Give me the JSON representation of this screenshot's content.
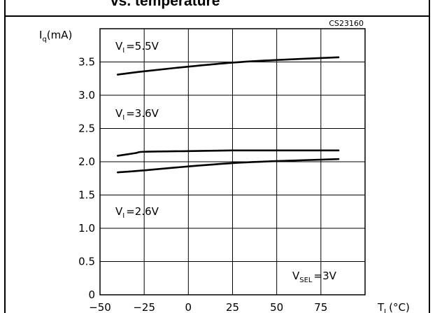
{
  "chart_data": {
    "type": "line",
    "title": "vs. temperature",
    "code": "CS23160",
    "ylabel": {
      "main": "I",
      "sub": "q",
      "unit": "(mA)"
    },
    "xlabel": {
      "main": "T",
      "sub": "J",
      "unit": "(°C)"
    },
    "xlim": [
      -50,
      100
    ],
    "ylim": [
      0,
      4.0
    ],
    "grid": true,
    "x_ticks": [
      -50,
      -25,
      0,
      25,
      50,
      75
    ],
    "x_tick_labels": [
      "−50",
      "−25",
      "0",
      "25",
      "50",
      "75"
    ],
    "y_ticks": [
      0,
      0.5,
      1.0,
      1.5,
      2.0,
      2.5,
      3.0,
      3.5
    ],
    "y_tick_labels": [
      "0",
      "0.5",
      "1.0",
      "1.5",
      "2.0",
      "2.5",
      "3.0",
      "3.5"
    ],
    "series": [
      {
        "name": "VI=5.5V",
        "x": [
          -40,
          -25,
          0,
          25,
          50,
          85
        ],
        "y": [
          3.31,
          3.36,
          3.43,
          3.49,
          3.53,
          3.57
        ]
      },
      {
        "name": "VI=3.6V",
        "x": [
          -40,
          -30,
          -25,
          0,
          25,
          50,
          85
        ],
        "y": [
          2.09,
          2.13,
          2.15,
          2.16,
          2.17,
          2.17,
          2.17
        ]
      },
      {
        "name": "VI=2.6V",
        "x": [
          -40,
          -25,
          0,
          25,
          50,
          85
        ],
        "y": [
          1.84,
          1.87,
          1.93,
          1.98,
          2.01,
          2.04
        ]
      }
    ],
    "annotations": [
      {
        "main": "V",
        "sub": "I",
        "text": "=5.5V"
      },
      {
        "main": "V",
        "sub": "I",
        "text": "=3.6V"
      },
      {
        "main": "V",
        "sub": "I",
        "text": "=2.6V"
      },
      {
        "main": "V",
        "sub": "SEL",
        "text": "=3V"
      }
    ]
  }
}
